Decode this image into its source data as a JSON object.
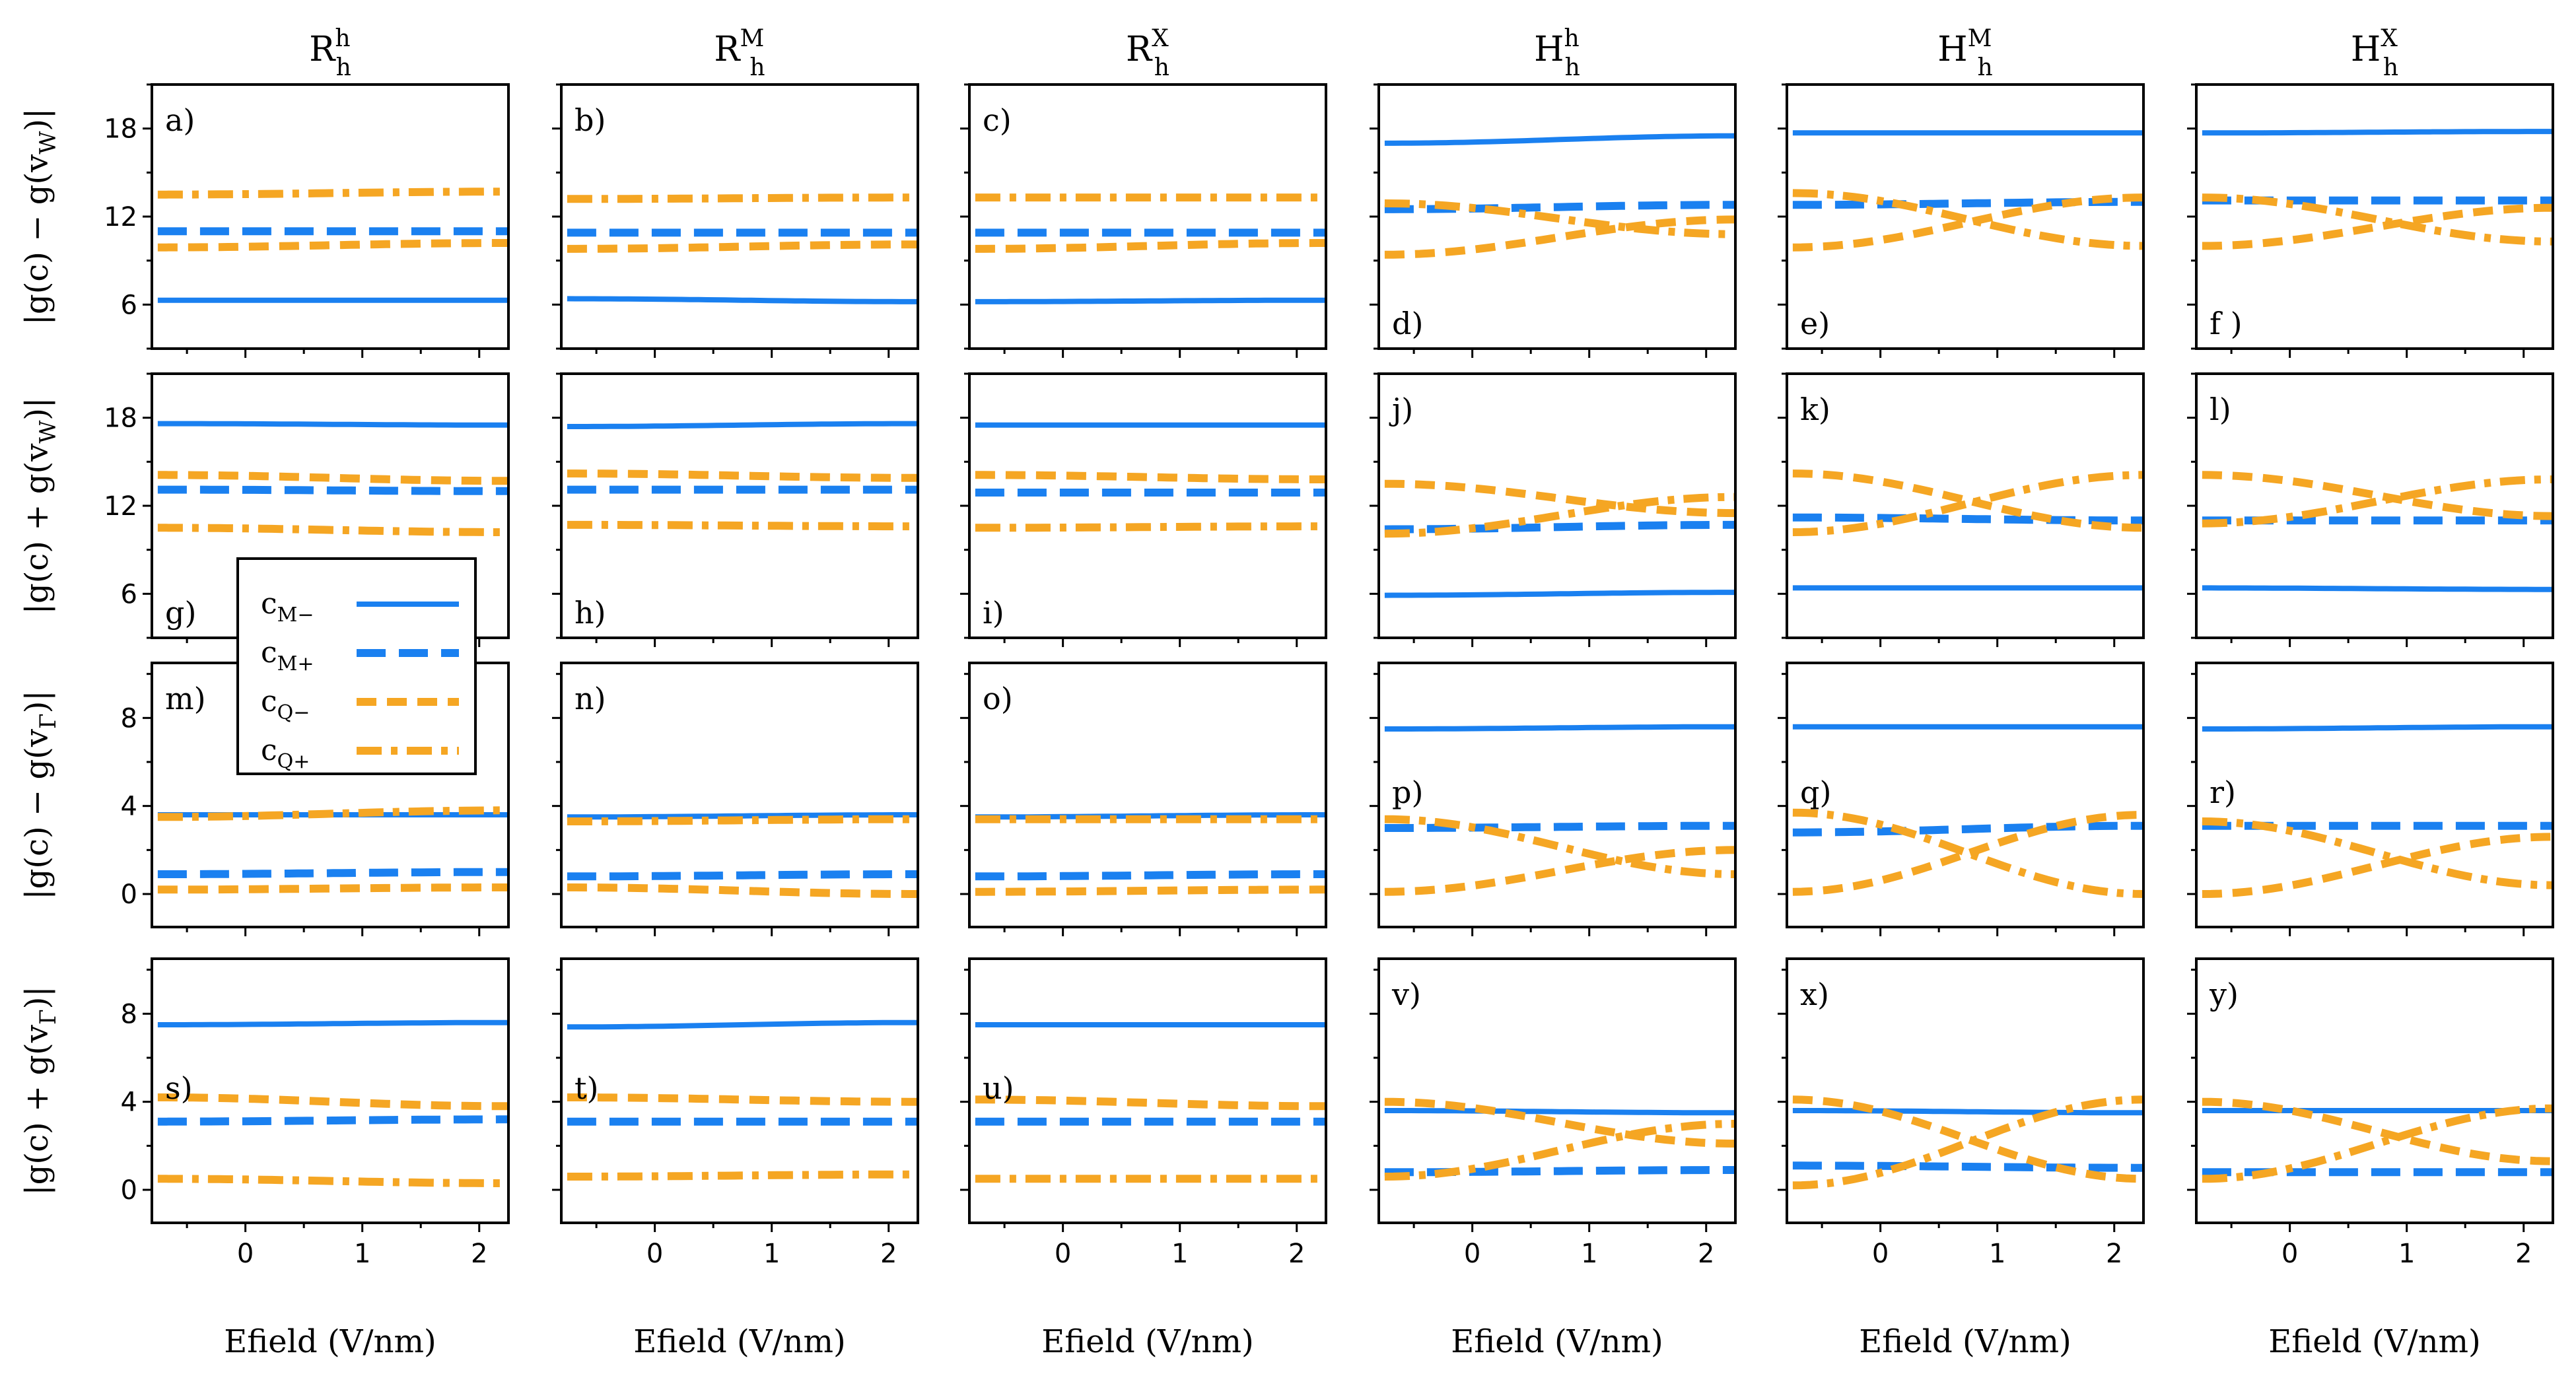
{
  "colors": {
    "blue": "#1a80f0",
    "orange": "#f5a623",
    "axis": "#000000"
  },
  "legend": [
    {
      "base": "c",
      "sub": "M−",
      "style": "solid",
      "color": "#1a80f0"
    },
    {
      "base": "c",
      "sub": "M+",
      "style": "dashed",
      "color": "#1a80f0"
    },
    {
      "base": "c",
      "sub": "Q−",
      "style": "dashed",
      "color": "#f5a623"
    },
    {
      "base": "c",
      "sub": "Q+",
      "style": "dashdot",
      "color": "#f5a623"
    }
  ],
  "chart_data": {
    "type": "line",
    "columns": [
      {
        "base": "R",
        "sub": "h",
        "sup": "h"
      },
      {
        "base": "R",
        "sub": "h",
        "sup": "M"
      },
      {
        "base": "R",
        "sub": "h",
        "sup": "X"
      },
      {
        "base": "H",
        "sub": "h",
        "sup": "h"
      },
      {
        "base": "H",
        "sub": "h",
        "sup": "M"
      },
      {
        "base": "H",
        "sub": "h",
        "sup": "X"
      }
    ],
    "rows": [
      {
        "ylabel": "|g(c) − g(v_W)|",
        "ylabel_base": "|g(c) − g(v",
        "ylabel_sub": "W",
        "ylabel_end": ")|",
        "ylim": [
          3,
          21
        ],
        "yticks": [
          6,
          12,
          18
        ],
        "yticklabels": [
          "6",
          "12",
          "18"
        ]
      },
      {
        "ylabel": "|g(c) + g(v_W)|",
        "ylabel_base": "|g(c) + g(v",
        "ylabel_sub": "W",
        "ylabel_end": ")|",
        "ylim": [
          3,
          21
        ],
        "yticks": [
          6,
          12,
          18
        ],
        "yticklabels": [
          "6",
          "12",
          "18"
        ]
      },
      {
        "ylabel": "|g(c) − g(v_Γ)|",
        "ylabel_base": "|g(c) − g(v",
        "ylabel_sub": "Γ",
        "ylabel_end": ")|",
        "ylim": [
          -1.5,
          10.5
        ],
        "yticks": [
          0,
          4,
          8
        ],
        "yticklabels": [
          "0",
          "4",
          "8"
        ]
      },
      {
        "ylabel": "|g(c) + g(v_Γ)|",
        "ylabel_base": "|g(c) + g(v",
        "ylabel_sub": "Γ",
        "ylabel_end": ")|",
        "ylim": [
          -1.5,
          10.5
        ],
        "yticks": [
          0,
          4,
          8
        ],
        "yticklabels": [
          "0",
          "4",
          "8"
        ]
      }
    ],
    "xlim": [
      -0.8,
      2.25
    ],
    "xticks": [
      0,
      1,
      2
    ],
    "xticklabels": [
      "0",
      "1",
      "2"
    ],
    "xlabel": "Efield (V/nm)",
    "x": [
      -0.75,
      2.25
    ],
    "panels": [
      {
        "label": "a)",
        "label_pos": "top",
        "series": {
          "cM-": [
            6.3,
            6.3
          ],
          "cM+": [
            11,
            11
          ],
          "cQ-": [
            9.9,
            10.2
          ],
          "cQ+": [
            13.5,
            13.7
          ]
        }
      },
      {
        "label": "b)",
        "label_pos": "top",
        "series": {
          "cM-": [
            6.4,
            6.2
          ],
          "cM+": [
            10.9,
            10.9
          ],
          "cQ-": [
            9.8,
            10.1
          ],
          "cQ+": [
            13.2,
            13.3
          ]
        }
      },
      {
        "label": "c)",
        "label_pos": "top",
        "series": {
          "cM-": [
            6.2,
            6.3
          ],
          "cM+": [
            10.9,
            10.9
          ],
          "cQ-": [
            9.8,
            10.2
          ],
          "cQ+": [
            13.3,
            13.3
          ]
        }
      },
      {
        "label": "d)",
        "label_pos": "bottom",
        "series": {
          "cM-": [
            17,
            17.5
          ],
          "cM+": [
            12.5,
            12.8
          ],
          "cQ-": [
            9.4,
            11.8
          ],
          "cQ+": [
            12.9,
            10.8
          ]
        }
      },
      {
        "label": "e)",
        "label_pos": "bottom",
        "series": {
          "cM-": [
            17.7,
            17.7
          ],
          "cM+": [
            12.8,
            13
          ],
          "cQ-": [
            9.9,
            13.3
          ],
          "cQ+": [
            13.6,
            10
          ]
        }
      },
      {
        "label": "f )",
        "label_pos": "bottom",
        "series": {
          "cM-": [
            17.7,
            17.8
          ],
          "cM+": [
            13.1,
            13.1
          ],
          "cQ-": [
            10,
            12.6
          ],
          "cQ+": [
            13.3,
            10.3
          ]
        }
      },
      {
        "label": "g)",
        "label_pos": "bottom",
        "series": {
          "cM-": [
            17.6,
            17.5
          ],
          "cM+": [
            13.1,
            13
          ],
          "cQ-": [
            14.1,
            13.7
          ],
          "cQ+": [
            10.5,
            10.2
          ]
        }
      },
      {
        "label": "h)",
        "label_pos": "bottom",
        "series": {
          "cM-": [
            17.4,
            17.6
          ],
          "cM+": [
            13.1,
            13.1
          ],
          "cQ-": [
            14.2,
            13.9
          ],
          "cQ+": [
            10.7,
            10.6
          ]
        }
      },
      {
        "label": "i)",
        "label_pos": "bottom",
        "series": {
          "cM-": [
            17.5,
            17.5
          ],
          "cM+": [
            12.9,
            12.9
          ],
          "cQ-": [
            14.1,
            13.8
          ],
          "cQ+": [
            10.5,
            10.6
          ]
        }
      },
      {
        "label": "j)",
        "label_pos": "top",
        "series": {
          "cM-": [
            5.9,
            6.1
          ],
          "cM+": [
            10.4,
            10.7
          ],
          "cQ-": [
            13.5,
            11.5
          ],
          "cQ+": [
            10.1,
            12.6
          ]
        }
      },
      {
        "label": "k)",
        "label_pos": "top",
        "series": {
          "cM-": [
            6.4,
            6.4
          ],
          "cM+": [
            11.2,
            11
          ],
          "cQ-": [
            14.2,
            10.5
          ],
          "cQ+": [
            10.2,
            14.1
          ]
        }
      },
      {
        "label": "l)",
        "label_pos": "top",
        "series": {
          "cM-": [
            6.4,
            6.3
          ],
          "cM+": [
            11,
            11
          ],
          "cQ-": [
            14.1,
            11.3
          ],
          "cQ+": [
            10.8,
            13.8
          ]
        }
      },
      {
        "label": "m)",
        "label_pos": "top",
        "series": {
          "cM-": [
            3.6,
            3.6
          ],
          "cM+": [
            0.9,
            1
          ],
          "cQ-": [
            0.2,
            0.3
          ],
          "cQ+": [
            3.5,
            3.8
          ]
        }
      },
      {
        "label": "n)",
        "label_pos": "top",
        "series": {
          "cM-": [
            3.5,
            3.6
          ],
          "cM+": [
            0.8,
            0.9
          ],
          "cQ-": [
            0.3,
            0
          ],
          "cQ+": [
            3.3,
            3.4
          ]
        }
      },
      {
        "label": "o)",
        "label_pos": "top",
        "series": {
          "cM-": [
            3.5,
            3.6
          ],
          "cM+": [
            0.8,
            0.9
          ],
          "cQ-": [
            0.1,
            0.2
          ],
          "cQ+": [
            3.4,
            3.4
          ]
        }
      },
      {
        "label": "p)",
        "label_pos": "mid",
        "series": {
          "cM-": [
            7.5,
            7.6
          ],
          "cM+": [
            3,
            3.1
          ],
          "cQ-": [
            0.1,
            2
          ],
          "cQ+": [
            3.4,
            0.9
          ]
        }
      },
      {
        "label": "q)",
        "label_pos": "mid",
        "series": {
          "cM-": [
            7.6,
            7.6
          ],
          "cM+": [
            2.8,
            3.1
          ],
          "cQ-": [
            0.1,
            3.6
          ],
          "cQ+": [
            3.7,
            0
          ]
        }
      },
      {
        "label": "r)",
        "label_pos": "mid",
        "series": {
          "cM-": [
            7.5,
            7.6
          ],
          "cM+": [
            3.1,
            3.1
          ],
          "cQ-": [
            0,
            2.6
          ],
          "cQ+": [
            3.3,
            0.4
          ]
        }
      },
      {
        "label": "s)",
        "label_pos": "mid",
        "series": {
          "cM-": [
            7.5,
            7.6
          ],
          "cM+": [
            3.1,
            3.2
          ],
          "cQ-": [
            4.2,
            3.8
          ],
          "cQ+": [
            0.5,
            0.3
          ]
        }
      },
      {
        "label": "t)",
        "label_pos": "mid",
        "series": {
          "cM-": [
            7.4,
            7.6
          ],
          "cM+": [
            3.1,
            3.1
          ],
          "cQ-": [
            4.2,
            4
          ],
          "cQ+": [
            0.6,
            0.7
          ]
        }
      },
      {
        "label": "u)",
        "label_pos": "mid",
        "series": {
          "cM-": [
            7.5,
            7.5
          ],
          "cM+": [
            3.1,
            3.1
          ],
          "cQ-": [
            4.1,
            3.8
          ],
          "cQ+": [
            0.5,
            0.5
          ]
        }
      },
      {
        "label": "v)",
        "label_pos": "top",
        "series": {
          "cM-": [
            3.6,
            3.5
          ],
          "cM+": [
            0.8,
            0.9
          ],
          "cQ-": [
            4,
            2.1
          ],
          "cQ+": [
            0.6,
            3
          ]
        }
      },
      {
        "label": "x)",
        "label_pos": "top",
        "series": {
          "cM-": [
            3.6,
            3.5
          ],
          "cM+": [
            1.1,
            1
          ],
          "cQ-": [
            4.1,
            0.5
          ],
          "cQ+": [
            0.2,
            4.1
          ]
        }
      },
      {
        "label": "y)",
        "label_pos": "top",
        "series": {
          "cM-": [
            3.6,
            3.6
          ],
          "cM+": [
            0.8,
            0.8
          ],
          "cQ-": [
            4,
            1.3
          ],
          "cQ+": [
            0.5,
            3.7
          ]
        }
      }
    ]
  }
}
